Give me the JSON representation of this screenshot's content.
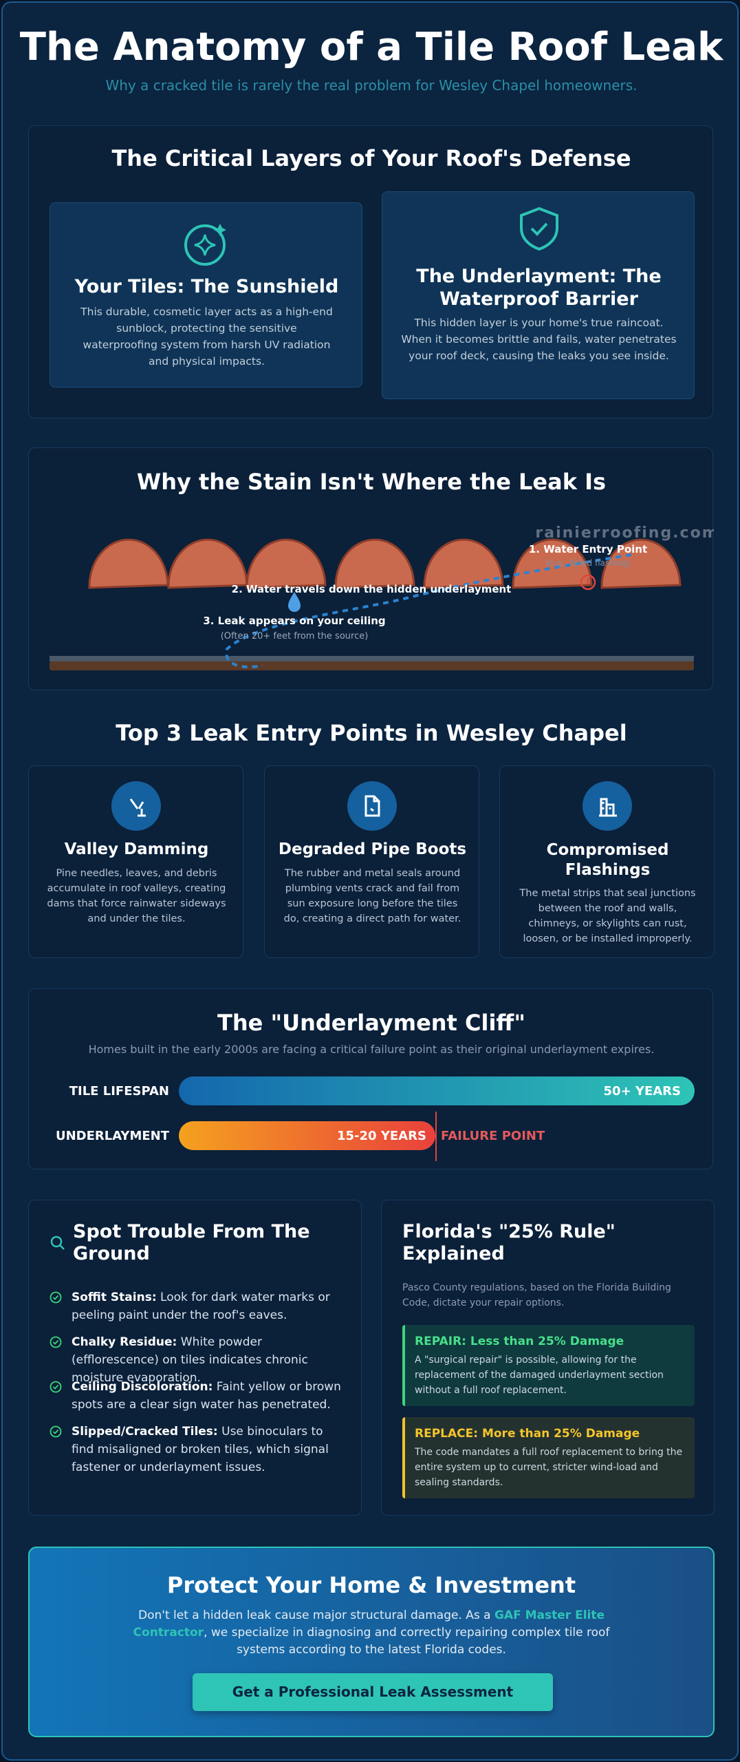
{
  "header": {
    "title": "The Anatomy of a Tile Roof Leak",
    "subtitle": "Why a cracked tile is rarely the real problem for Wesley Chapel homeowners."
  },
  "layers": {
    "heading": "The Critical Layers of Your Roof's Defense",
    "cards": [
      {
        "title": "Your Tiles: The Sunshield",
        "text": "This durable, cosmetic layer acts as a high-end sunblock, protecting the sensitive waterproofing system from harsh UV radiation and physical impacts."
      },
      {
        "title": "The Underlayment: The Waterproof Barrier",
        "text": "This hidden layer is your home's true raincoat. When it becomes brittle and fails, water penetrates your roof deck, causing the leaks you see inside."
      }
    ]
  },
  "stain": {
    "heading": "Why the Stain Isn't Where the Leak Is",
    "watermark": "rainierroofing.com",
    "labels": [
      {
        "text": "1. Water Entry Point",
        "note": "(e.g., failed flashing)"
      },
      {
        "text": "2. Water travels down the hidden underlayment"
      },
      {
        "text": "3. Leak appears on your ceiling",
        "note": "(Often 20+ feet from the source)"
      }
    ]
  },
  "entry_points": {
    "heading": "Top 3 Leak Entry Points in Wesley Chapel",
    "cards": [
      {
        "title": "Valley Damming",
        "text": "Pine needles, leaves, and debris accumulate in roof valleys, creating dams that force rainwater sideways and under the tiles."
      },
      {
        "title": "Degraded Pipe Boots",
        "text": "The rubber and metal seals around plumbing vents crack and fail from sun exposure long before the tiles do, creating a direct path for water."
      },
      {
        "title": "Compromised Flashings",
        "text": "The metal strips that seal junctions between the roof and walls, chimneys, or skylights can rust, loosen, or be installed improperly."
      }
    ]
  },
  "cliff": {
    "heading": "The \"Underlayment Cliff\"",
    "subtitle": "Homes built in the early 2000s are facing a critical failure point as their original underlayment expires.",
    "rows": [
      {
        "label": "TILE LIFESPAN",
        "value": "50+ YEARS"
      },
      {
        "label": "UNDERLAYMENT",
        "value": "15-20 YEARS"
      }
    ],
    "failure_label": "FAILURE POINT"
  },
  "trouble": {
    "heading": "Spot Trouble From The Ground",
    "items": [
      {
        "term": "Soffit Stains:",
        "text": "Look for dark water marks or peeling paint under the roof's eaves."
      },
      {
        "term": "Chalky Residue:",
        "text": "White powder (efflorescence) on tiles indicates chronic moisture evaporation."
      },
      {
        "term": "Ceiling Discoloration:",
        "text": "Faint yellow or brown spots are a clear sign water has penetrated."
      },
      {
        "term": "Slipped/Cracked Tiles:",
        "text": "Use binoculars to find misaligned or broken tiles, which signal fastener or underlayment issues."
      }
    ]
  },
  "rule": {
    "heading": "Florida's \"25% Rule\" Explained",
    "intro": "Pasco County regulations, based on the Florida Building Code, dictate your repair options.",
    "options": [
      {
        "title": "REPAIR: Less than 25% Damage",
        "text": "A \"surgical repair\" is possible, allowing for the replacement of the damaged underlayment section without a full roof replacement."
      },
      {
        "title": "REPLACE: More than 25% Damage",
        "text": "The code mandates a full roof replacement to bring the entire system up to current, stricter wind-load and sealing standards."
      }
    ]
  },
  "cta": {
    "heading": "Protect Your Home & Investment",
    "text_before": "Don't let a hidden leak cause major structural damage. As a",
    "highlight": "GAF Master Elite Contractor",
    "text_after": ", we specialize in diagnosing and correctly repairing complex tile roof systems according to the latest Florida codes.",
    "button": "Get a Professional Leak Assessment"
  }
}
